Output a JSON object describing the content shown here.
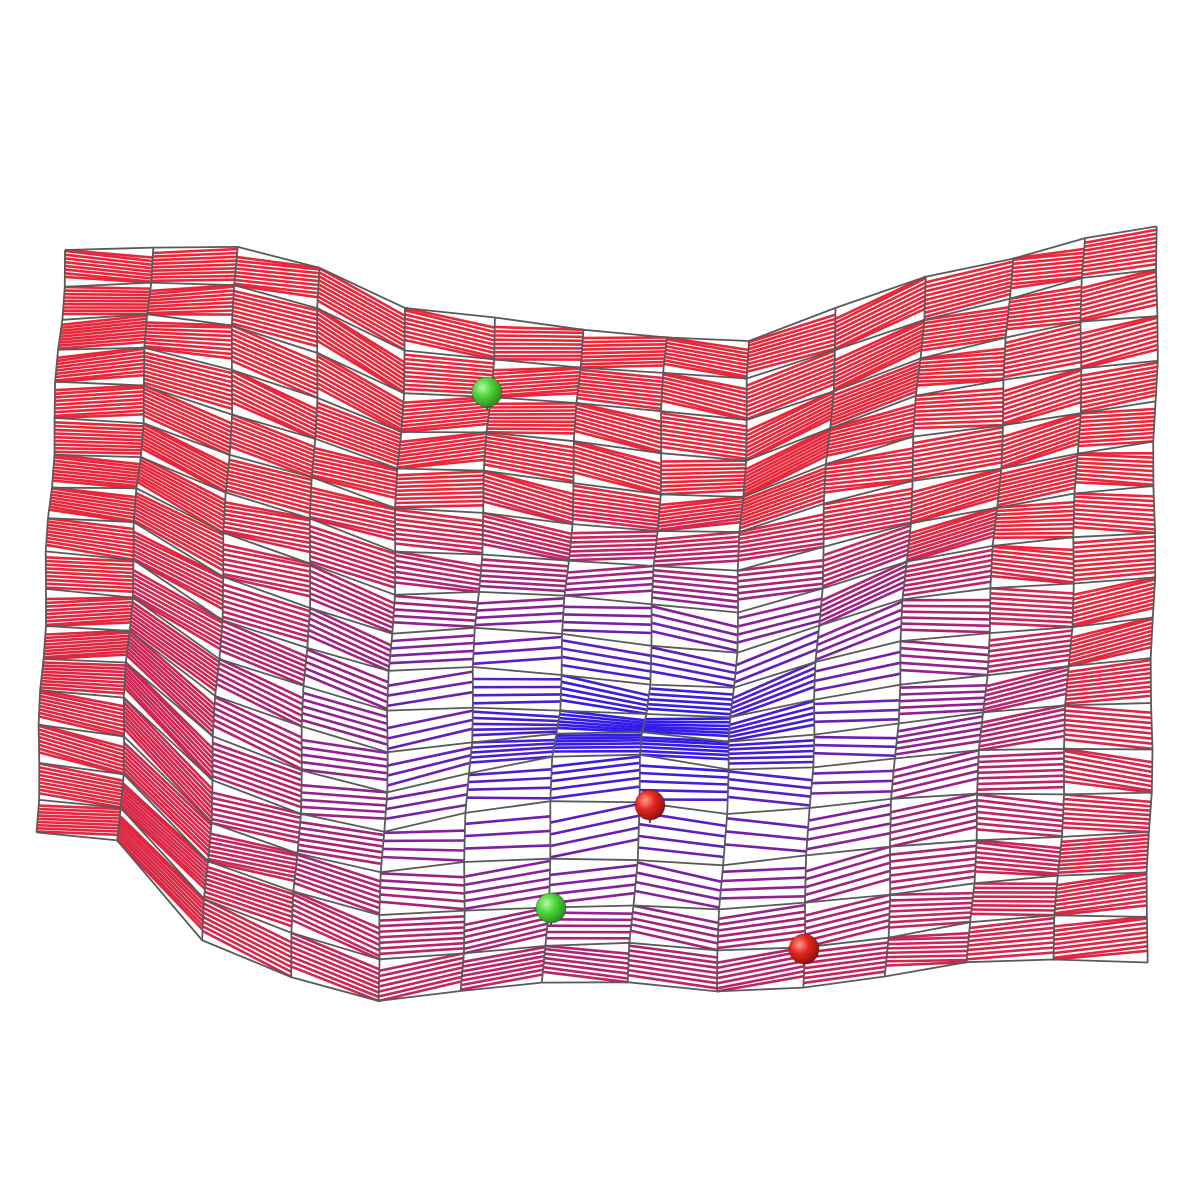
{
  "figure": {
    "type": "3d-wireframe-surface-with-contours",
    "background_color": "#ffffff",
    "mesh_color": "#5a5a5a",
    "contour_color_low": "#2b1cf0",
    "contour_color_high": "#e8283a",
    "grid_columns": 13,
    "grid_rows": 17
  },
  "markers": [
    {
      "name": "green-marker-upper",
      "color": "#4cd43a",
      "kind": "minimum"
    },
    {
      "name": "red-marker-center",
      "color": "#e3261c",
      "kind": "maximum"
    },
    {
      "name": "green-marker-lower",
      "color": "#4cd43a",
      "kind": "minimum"
    },
    {
      "name": "red-marker-lower-right",
      "color": "#e3261c",
      "kind": "maximum"
    }
  ]
}
